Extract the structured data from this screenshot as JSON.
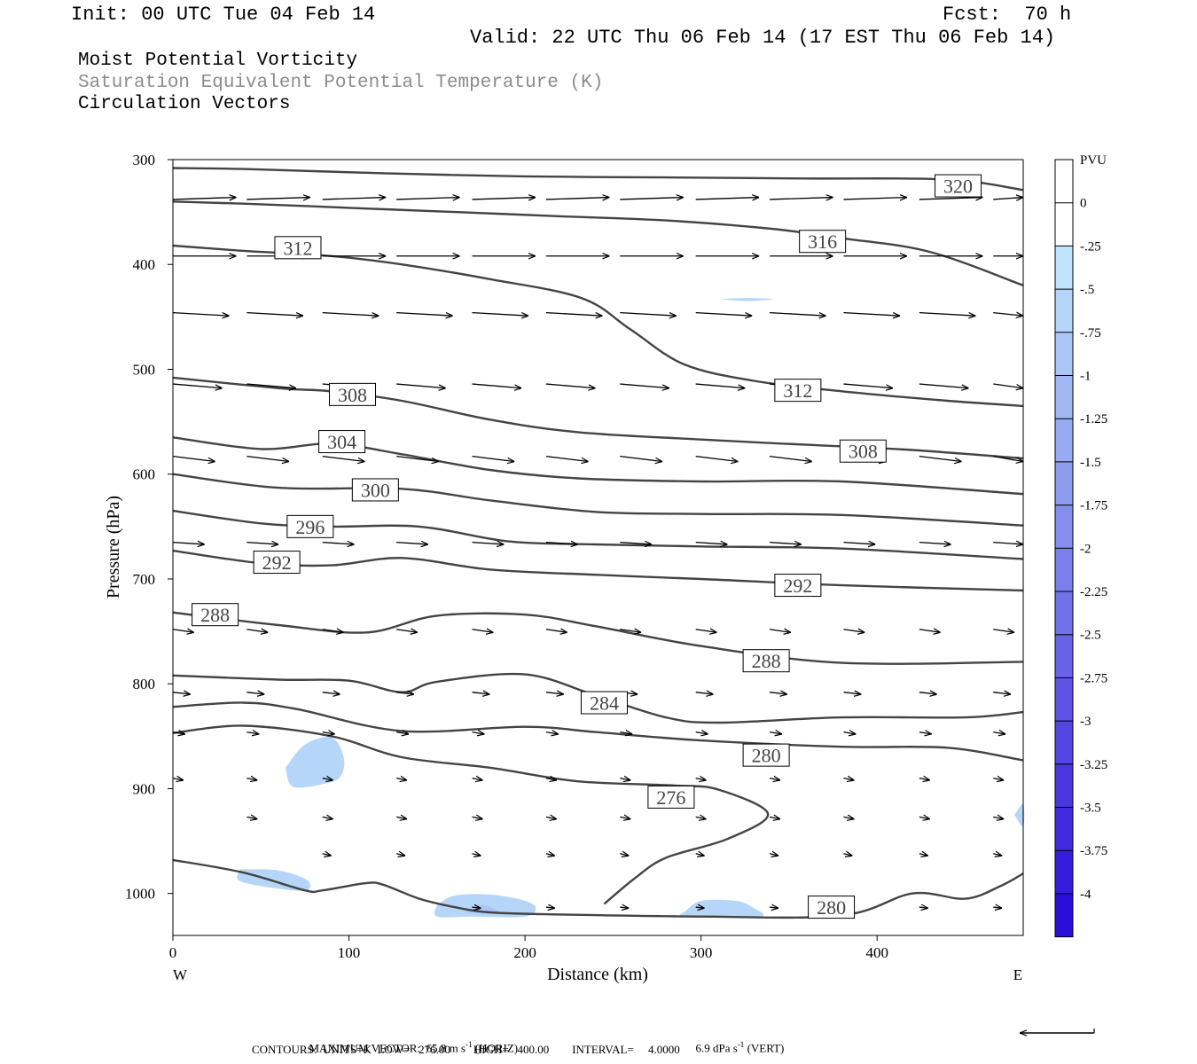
{
  "header": {
    "init": "Init: 00 UTC Tue 04 Feb 14",
    "fcst": "Fcst:  70 h",
    "valid": "Valid: 22 UTC Thu 06 Feb 14 (17 EST Thu 06 Feb 14)",
    "fields": [
      "Moist Potential Vorticity",
      "Saturation Equivalent Potential Temperature (K)",
      "Circulation Vectors"
    ]
  },
  "chart_data": {
    "type": "cross-section",
    "xlabel": "Distance (km)",
    "ylabel": "Pressure (hPa)",
    "x_range": [
      0,
      483
    ],
    "y_range": [
      1040,
      300
    ],
    "x_ticks": [
      "0",
      "100",
      "200",
      "300",
      "400"
    ],
    "y_ticks": [
      "300",
      "400",
      "500",
      "600",
      "700",
      "800",
      "900",
      "1000"
    ],
    "x_end_labels": {
      "left": "W",
      "right": "E"
    },
    "colorbar": {
      "title": "PVU",
      "labels": [
        "0",
        "-.25",
        "-.5",
        "-.75",
        "-1",
        "-1.25",
        "-1.5",
        "-1.75",
        "-2",
        "-2.25",
        "-2.5",
        "-2.75",
        "-3",
        "-3.25",
        "-3.5",
        "-3.75",
        "-4"
      ],
      "colors": [
        "#ffffff",
        "#ffffff",
        "#bfe4fb",
        "#b5d6f9",
        "#abc6f6",
        "#a2b8f4",
        "#98aaf2",
        "#8e9cf0",
        "#858dee",
        "#7b7fec",
        "#7171e9",
        "#6762e7",
        "#5d54e5",
        "#5346e2",
        "#4938e0",
        "#3f2ade",
        "#351cdc",
        "#2b0edb"
      ]
    },
    "contour_labels": [
      "320",
      "316",
      "312",
      "312",
      "308",
      "308",
      "304",
      "300",
      "296",
      "292",
      "292",
      "288",
      "288",
      "284",
      "280",
      "276",
      "280"
    ],
    "contours": [
      {
        "level": 320,
        "points": [
          [
            0,
            308
          ],
          [
            40,
            309
          ],
          [
            120,
            313
          ],
          [
            200,
            316
          ],
          [
            280,
            317
          ],
          [
            360,
            318
          ],
          [
            440,
            319
          ],
          [
            483,
            329
          ]
        ]
      },
      {
        "level": 316,
        "points": [
          [
            0,
            340
          ],
          [
            40,
            342
          ],
          [
            100,
            346
          ],
          [
            160,
            350
          ],
          [
            220,
            354
          ],
          [
            280,
            358
          ],
          [
            340,
            366
          ],
          [
            380,
            375
          ],
          [
            430,
            388
          ],
          [
            483,
            420
          ]
        ]
      },
      {
        "level": 312,
        "points": [
          [
            0,
            382
          ],
          [
            40,
            387
          ],
          [
            90,
            392
          ],
          [
            130,
            400
          ],
          [
            180,
            414
          ],
          [
            232,
            432
          ],
          [
            260,
            462
          ],
          [
            290,
            495
          ],
          [
            330,
            511
          ],
          [
            380,
            521
          ],
          [
            440,
            530
          ],
          [
            483,
            535
          ]
        ]
      },
      {
        "level": 308,
        "points": [
          [
            0,
            508
          ],
          [
            60,
            518
          ],
          [
            90,
            521
          ],
          [
            130,
            530
          ],
          [
            180,
            548
          ],
          [
            230,
            560
          ],
          [
            300,
            567
          ],
          [
            360,
            572
          ],
          [
            420,
            577
          ],
          [
            483,
            585
          ]
        ]
      },
      {
        "level": 304,
        "points": [
          [
            0,
            565
          ],
          [
            50,
            576
          ],
          [
            90,
            571
          ],
          [
            130,
            581
          ],
          [
            180,
            596
          ],
          [
            230,
            604
          ],
          [
            300,
            607
          ],
          [
            380,
            607
          ],
          [
            483,
            619
          ]
        ]
      },
      {
        "level": 300,
        "points": [
          [
            0,
            600
          ],
          [
            60,
            613
          ],
          [
            130,
            614
          ],
          [
            180,
            625
          ],
          [
            240,
            636
          ],
          [
            300,
            638
          ],
          [
            380,
            639
          ],
          [
            483,
            649
          ]
        ]
      },
      {
        "level": 296,
        "points": [
          [
            0,
            635
          ],
          [
            50,
            647
          ],
          [
            90,
            650
          ],
          [
            140,
            650
          ],
          [
            190,
            664
          ],
          [
            240,
            667
          ],
          [
            300,
            669
          ],
          [
            380,
            671
          ],
          [
            483,
            681
          ]
        ]
      },
      {
        "level": 292,
        "points": [
          [
            0,
            673
          ],
          [
            50,
            685
          ],
          [
            90,
            687
          ],
          [
            130,
            680
          ],
          [
            180,
            691
          ],
          [
            240,
            696
          ],
          [
            300,
            700
          ],
          [
            380,
            706
          ],
          [
            483,
            711
          ]
        ]
      },
      {
        "level": 288,
        "points": [
          [
            0,
            732
          ],
          [
            60,
            744
          ],
          [
            110,
            751
          ],
          [
            150,
            735
          ],
          [
            200,
            734
          ],
          [
            240,
            745
          ],
          [
            300,
            764
          ],
          [
            380,
            780
          ],
          [
            483,
            779
          ]
        ]
      },
      {
        "level": 284,
        "points": [
          [
            0,
            792
          ],
          [
            60,
            796
          ],
          [
            100,
            797
          ],
          [
            130,
            808
          ],
          [
            150,
            798
          ],
          [
            200,
            791
          ],
          [
            240,
            811
          ],
          [
            280,
            832
          ],
          [
            310,
            837
          ],
          [
            380,
            832
          ],
          [
            450,
            832
          ],
          [
            483,
            827
          ]
        ]
      },
      {
        "level": 280,
        "points": [
          [
            0,
            822
          ],
          [
            40,
            818
          ],
          [
            70,
            824
          ],
          [
            130,
            845
          ],
          [
            200,
            841
          ],
          [
            240,
            846
          ],
          [
            300,
            854
          ],
          [
            380,
            860
          ],
          [
            440,
            861
          ],
          [
            483,
            873
          ]
        ]
      },
      {
        "level": 276,
        "points": [
          [
            0,
            847
          ],
          [
            40,
            840
          ],
          [
            90,
            850
          ],
          [
            130,
            870
          ],
          [
            180,
            880
          ],
          [
            230,
            893
          ],
          [
            285,
            897
          ],
          [
            310,
            901
          ],
          [
            338,
            924
          ],
          [
            315,
            948
          ],
          [
            280,
            966
          ],
          [
            262,
            986
          ],
          [
            245,
            1010
          ]
        ]
      },
      {
        "level": 280,
        "points": [
          [
            0,
            968
          ],
          [
            40,
            980
          ],
          [
            75,
            997
          ],
          [
            85,
            997
          ],
          [
            110,
            990
          ],
          [
            120,
            992
          ],
          [
            140,
            1005
          ],
          [
            160,
            1013
          ],
          [
            180,
            1018
          ],
          [
            220,
            1020
          ],
          [
            300,
            1022
          ],
          [
            380,
            1021
          ],
          [
            420,
            1000
          ],
          [
            450,
            1005
          ],
          [
            470,
            993
          ],
          [
            483,
            981
          ]
        ]
      }
    ],
    "pv_shading": [
      {
        "value": -0.5,
        "points": [
          [
            64,
            880
          ],
          [
            75,
            858
          ],
          [
            90,
            851
          ],
          [
            97,
            870
          ],
          [
            95,
            889
          ],
          [
            84,
            896
          ],
          [
            68,
            898
          ]
        ]
      },
      {
        "value": -0.5,
        "points": [
          [
            38,
            977
          ],
          [
            60,
            978
          ],
          [
            76,
            987
          ],
          [
            76,
            997
          ],
          [
            58,
            995
          ],
          [
            38,
            988
          ]
        ]
      },
      {
        "value": -0.5,
        "points": [
          [
            150,
            1011
          ],
          [
            160,
            1002
          ],
          [
            180,
            1001
          ],
          [
            198,
            1006
          ],
          [
            206,
            1013
          ],
          [
            200,
            1022
          ],
          [
            170,
            1022
          ],
          [
            150,
            1022
          ]
        ]
      },
      {
        "value": -0.5,
        "points": [
          [
            291,
            1017
          ],
          [
            300,
            1007
          ],
          [
            320,
            1007
          ],
          [
            330,
            1014
          ],
          [
            333,
            1022
          ],
          [
            291,
            1022
          ]
        ]
      },
      {
        "value": -0.5,
        "points": [
          [
            310,
            433
          ],
          [
            326,
            432
          ],
          [
            341,
            433
          ],
          [
            326,
            435
          ]
        ]
      },
      {
        "value": -0.5,
        "points": [
          [
            478,
            925
          ],
          [
            483,
            915
          ],
          [
            483,
            936
          ]
        ]
      },
      {
        "value": -0.75,
        "points": [
          [
            165,
            1018
          ],
          [
            176,
            1011
          ],
          [
            186,
            1019
          ]
        ]
      }
    ],
    "vectors_note": "circulation vectors predominantly west-to-east; max vector shown in footer"
  },
  "footer": {
    "max_vector": "MAXIMUM VECTOR:  65.8 m s",
    "max_vector_sup": "-1",
    "max_vector_horiz": " (HORIZ)",
    "vert_value": "6.9 dPa s",
    "vert_sup": "-1",
    "vert_label": " (VERT)",
    "contours_line": "CONTOURS:  UNITS=K  LOW=   276.00        HIGH=   400.00        INTERVAL=     4.0000"
  }
}
